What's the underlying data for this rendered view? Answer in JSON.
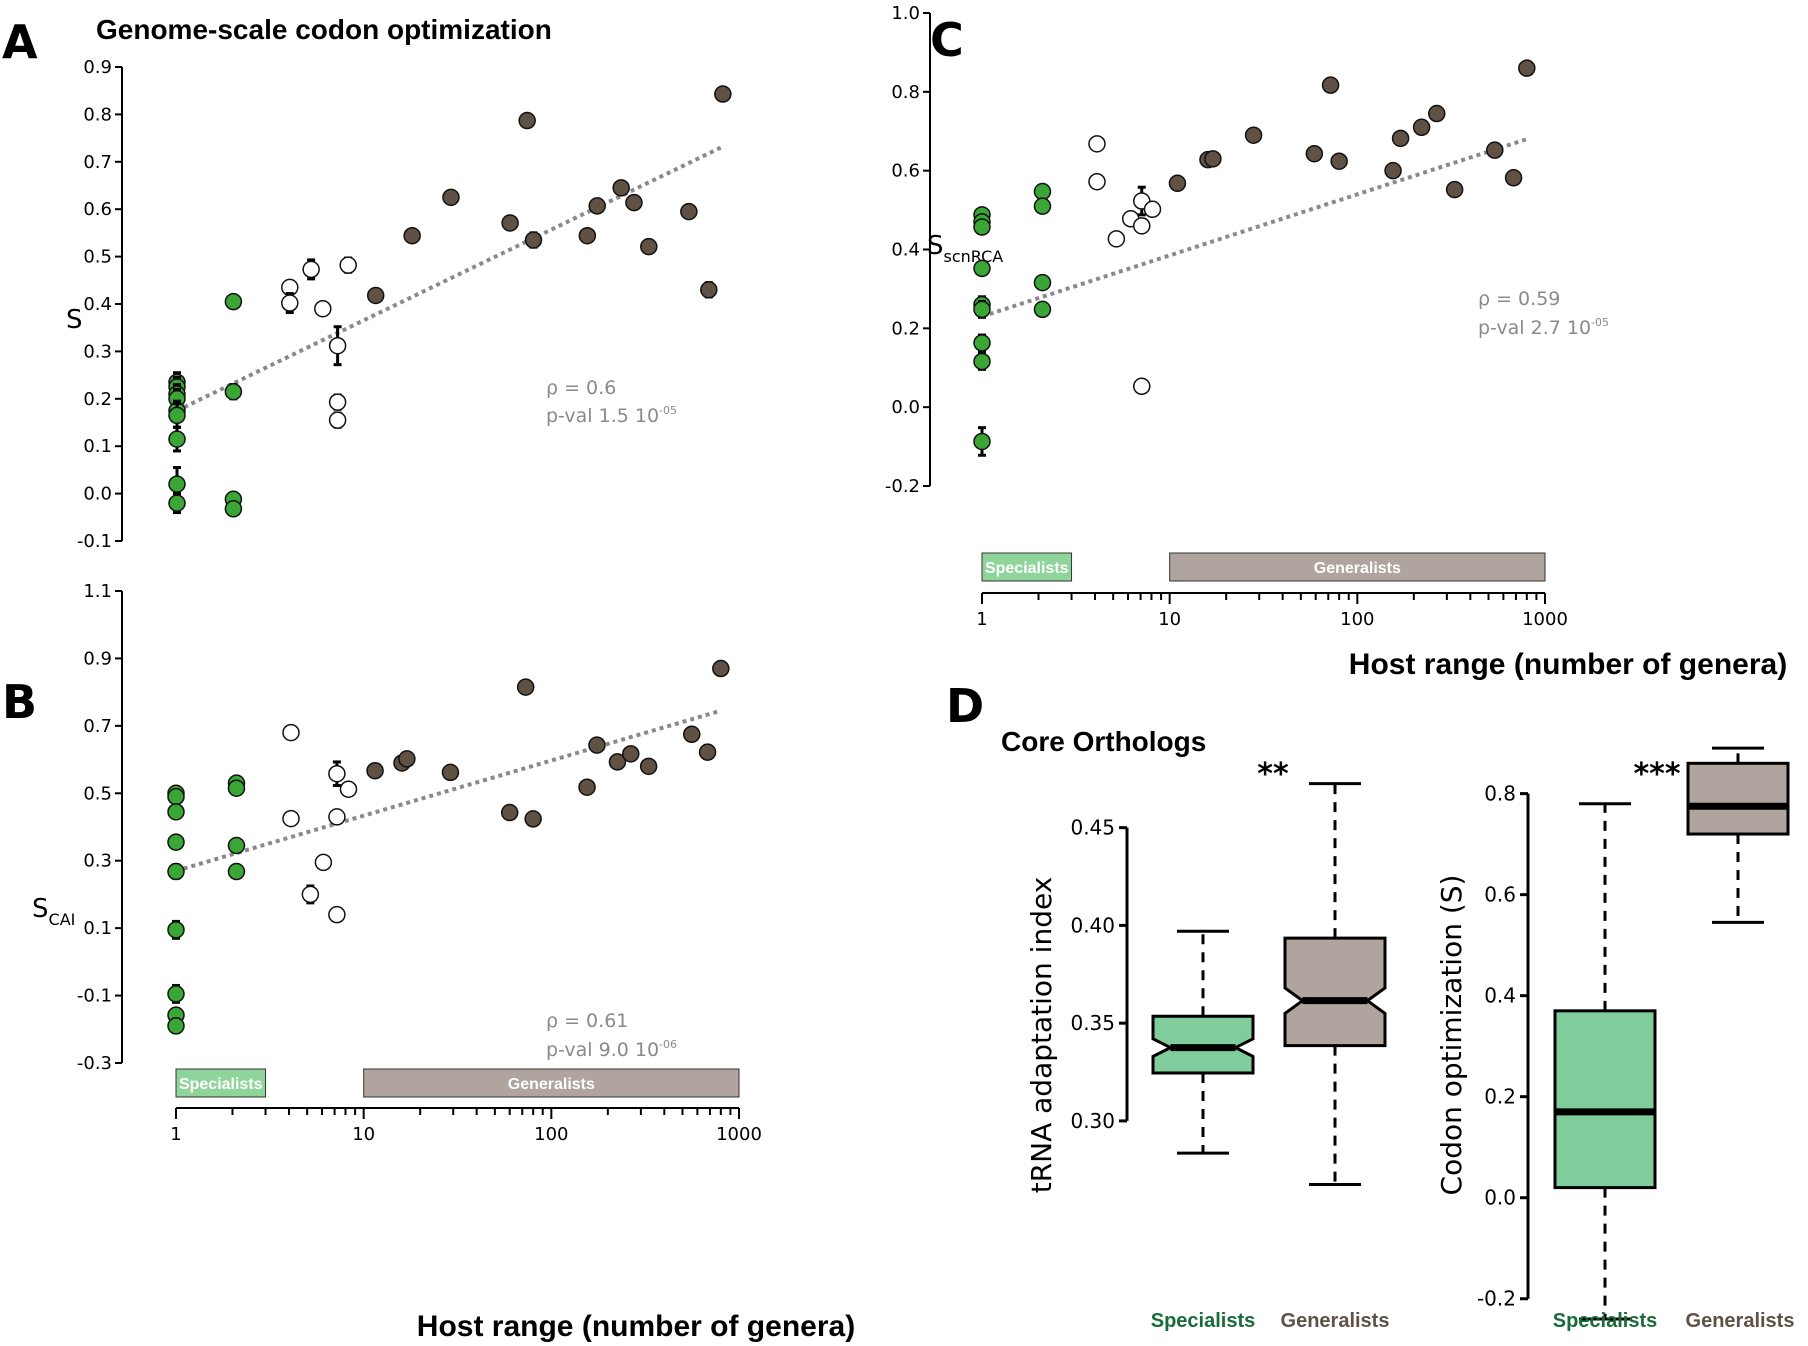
{
  "figure": {
    "colors": {
      "specialist": "#3aa635",
      "generalist": "#5f5144",
      "intermediate": "#ffffff",
      "trend": "#8a8a8a",
      "specialist_box": "#80cc9c",
      "generalist_box": "#b0a49e",
      "specialist_band": "#8fd49a",
      "generalist_band": "#b0a49e",
      "specialist_text": "#1a6b3a",
      "generalist_text": "#5f5144"
    },
    "legend_bands": {
      "specialists": "Specialists",
      "generalists": "Generalists"
    }
  },
  "chart_data": [
    {
      "id": "A",
      "type": "scatter",
      "panel_letter": "A",
      "title": "Genome-scale codon optimization",
      "ylabel": "S",
      "ylabel_sub": "",
      "xlabel": "",
      "xscale": "log",
      "xlim": [
        1,
        1000
      ],
      "ylim": [
        -0.1,
        0.9
      ],
      "yticks": [
        -0.1,
        0.0,
        0.1,
        0.2,
        0.3,
        0.4,
        0.5,
        0.6,
        0.7,
        0.8,
        0.9
      ],
      "ytick_labels": [
        "-0.1",
        "0.0",
        "0.1",
        "0.2",
        "0.3",
        "0.4",
        "0.5",
        "0.6",
        "0.7",
        "0.8",
        "0.9"
      ],
      "stats": {
        "rho": "ρ = 0.6",
        "pval": "p-val 1.5 10",
        "pval_exp": "-05"
      },
      "trend": {
        "x": [
          1,
          800
        ],
        "y": [
          0.175,
          0.73
        ]
      },
      "points": [
        {
          "x": 1,
          "y": 0.235,
          "g": "s",
          "e": 0.02
        },
        {
          "x": 1,
          "y": 0.225,
          "g": "s",
          "e": 0.02
        },
        {
          "x": 1,
          "y": 0.21,
          "g": "s",
          "e": 0.02
        },
        {
          "x": 1,
          "y": 0.2,
          "g": "s",
          "e": 0.02
        },
        {
          "x": 1,
          "y": 0.175,
          "g": "s",
          "e": 0.02
        },
        {
          "x": 1,
          "y": 0.165,
          "g": "s",
          "e": 0.025
        },
        {
          "x": 1,
          "y": 0.115,
          "g": "s",
          "e": 0.025
        },
        {
          "x": 1,
          "y": 0.02,
          "g": "s",
          "e": 0.035
        },
        {
          "x": 1,
          "y": -0.02,
          "g": "s",
          "e": 0.02
        },
        {
          "x": 2,
          "y": 0.405,
          "g": "s",
          "e": 0.01
        },
        {
          "x": 2,
          "y": 0.215,
          "g": "s",
          "e": 0.015
        },
        {
          "x": 2,
          "y": -0.012,
          "g": "s",
          "e": 0.01
        },
        {
          "x": 2,
          "y": -0.032,
          "g": "s",
          "e": 0.01
        },
        {
          "x": 4,
          "y": 0.435,
          "g": "i",
          "e": 0.01
        },
        {
          "x": 4,
          "y": 0.402,
          "g": "i",
          "e": 0.02
        },
        {
          "x": 5.2,
          "y": 0.473,
          "g": "i",
          "e": 0.02
        },
        {
          "x": 6,
          "y": 0.39,
          "g": "i",
          "e": 0.01
        },
        {
          "x": 7.2,
          "y": 0.312,
          "g": "i",
          "e": 0.04
        },
        {
          "x": 7.2,
          "y": 0.193,
          "g": "i",
          "e": 0.015
        },
        {
          "x": 7.2,
          "y": 0.155,
          "g": "i",
          "e": 0.015
        },
        {
          "x": 8.2,
          "y": 0.482,
          "g": "i",
          "e": 0.015
        },
        {
          "x": 11.5,
          "y": 0.418,
          "g": "g",
          "e": 0.01
        },
        {
          "x": 18,
          "y": 0.544,
          "g": "g",
          "e": 0.01
        },
        {
          "x": 29,
          "y": 0.625,
          "g": "g",
          "e": 0.005
        },
        {
          "x": 60,
          "y": 0.571,
          "g": "g",
          "e": 0.01
        },
        {
          "x": 74,
          "y": 0.787,
          "g": "g",
          "e": 0.005
        },
        {
          "x": 80,
          "y": 0.535,
          "g": "g",
          "e": 0.015
        },
        {
          "x": 155,
          "y": 0.544,
          "g": "g",
          "e": 0.01
        },
        {
          "x": 175,
          "y": 0.607,
          "g": "g",
          "e": 0.01
        },
        {
          "x": 235,
          "y": 0.645,
          "g": "g",
          "e": 0.005
        },
        {
          "x": 275,
          "y": 0.614,
          "g": "g",
          "e": 0.01
        },
        {
          "x": 330,
          "y": 0.521,
          "g": "g",
          "e": 0.01
        },
        {
          "x": 540,
          "y": 0.595,
          "g": "g",
          "e": 0.01
        },
        {
          "x": 690,
          "y": 0.43,
          "g": "g",
          "e": 0.015
        },
        {
          "x": 820,
          "y": 0.843,
          "g": "g",
          "e": 0.005
        }
      ]
    },
    {
      "id": "B",
      "type": "scatter",
      "panel_letter": "B",
      "title": "",
      "ylabel": "S",
      "ylabel_sub": "CAI",
      "xlabel": "Host range (number of genera)",
      "xscale": "log",
      "xlim": [
        1,
        1000
      ],
      "xticks": [
        1,
        10,
        100,
        1000
      ],
      "xtick_labels": [
        "1",
        "10",
        "100",
        "1000"
      ],
      "ylim": [
        -0.3,
        1.1
      ],
      "yticks": [
        -0.3,
        -0.1,
        0.1,
        0.3,
        0.5,
        0.7,
        0.9,
        1.1
      ],
      "ytick_labels": [
        "-0.3",
        "-0.1",
        "0.1",
        "0.3",
        "0.5",
        "0.7",
        "0.9",
        "1.1"
      ],
      "stats": {
        "rho": "ρ = 0.61",
        "pval": "p-val 9.0 10",
        "pval_exp": "-06"
      },
      "trend": {
        "x": [
          1,
          800
        ],
        "y": [
          0.27,
          0.745
        ]
      },
      "bands": [
        {
          "label": "Specialists",
          "x": [
            1,
            3
          ]
        },
        {
          "label": "Generalists",
          "x": [
            10,
            1000
          ]
        }
      ],
      "points": [
        {
          "x": 1,
          "y": 0.5,
          "g": "s",
          "e": 0.01
        },
        {
          "x": 1,
          "y": 0.49,
          "g": "s",
          "e": 0.01
        },
        {
          "x": 1,
          "y": 0.445,
          "g": "s",
          "e": 0.01
        },
        {
          "x": 1,
          "y": 0.355,
          "g": "s",
          "e": 0.015
        },
        {
          "x": 1,
          "y": 0.268,
          "g": "s",
          "e": 0.02
        },
        {
          "x": 1,
          "y": 0.095,
          "g": "s",
          "e": 0.025
        },
        {
          "x": 1,
          "y": -0.095,
          "g": "s",
          "e": 0.025
        },
        {
          "x": 1,
          "y": -0.158,
          "g": "s",
          "e": 0.01
        },
        {
          "x": 1,
          "y": -0.19,
          "g": "s",
          "e": 0.02
        },
        {
          "x": 2.1,
          "y": 0.53,
          "g": "s",
          "e": 0.01
        },
        {
          "x": 2.1,
          "y": 0.515,
          "g": "s",
          "e": 0.01
        },
        {
          "x": 2.1,
          "y": 0.345,
          "g": "s",
          "e": 0.01
        },
        {
          "x": 2.1,
          "y": 0.268,
          "g": "s",
          "e": 0.01
        },
        {
          "x": 4.1,
          "y": 0.68,
          "g": "i",
          "e": 0
        },
        {
          "x": 4.1,
          "y": 0.425,
          "g": "i",
          "e": 0
        },
        {
          "x": 5.2,
          "y": 0.2,
          "g": "i",
          "e": 0.025
        },
        {
          "x": 6.1,
          "y": 0.295,
          "g": "i",
          "e": 0
        },
        {
          "x": 7.2,
          "y": 0.558,
          "g": "i",
          "e": 0.035
        },
        {
          "x": 7.2,
          "y": 0.43,
          "g": "i",
          "e": 0
        },
        {
          "x": 7.2,
          "y": 0.14,
          "g": "i",
          "e": 0
        },
        {
          "x": 8.3,
          "y": 0.512,
          "g": "i",
          "e": 0
        },
        {
          "x": 11.5,
          "y": 0.567,
          "g": "g",
          "e": 0
        },
        {
          "x": 16,
          "y": 0.59,
          "g": "g",
          "e": 0
        },
        {
          "x": 17,
          "y": 0.602,
          "g": "g",
          "e": 0
        },
        {
          "x": 29,
          "y": 0.562,
          "g": "g",
          "e": 0
        },
        {
          "x": 60,
          "y": 0.443,
          "g": "g",
          "e": 0
        },
        {
          "x": 73,
          "y": 0.815,
          "g": "g",
          "e": 0
        },
        {
          "x": 80,
          "y": 0.424,
          "g": "g",
          "e": 0.01
        },
        {
          "x": 155,
          "y": 0.518,
          "g": "g",
          "e": 0
        },
        {
          "x": 175,
          "y": 0.643,
          "g": "g",
          "e": 0
        },
        {
          "io": 1,
          "x": 225,
          "y": 0.593,
          "g": "g",
          "e": 0
        },
        {
          "x": 265,
          "y": 0.617,
          "g": "g",
          "e": 0
        },
        {
          "x": 330,
          "y": 0.58,
          "g": "g",
          "e": 0
        },
        {
          "x": 560,
          "y": 0.675,
          "g": "g",
          "e": 0
        },
        {
          "x": 680,
          "y": 0.622,
          "g": "g",
          "e": 0
        },
        {
          "x": 800,
          "y": 0.87,
          "g": "g",
          "e": 0
        }
      ]
    },
    {
      "id": "C",
      "type": "scatter",
      "panel_letter": "C",
      "title": "",
      "ylabel": "S",
      "ylabel_sub": "scnRCA",
      "xlabel": "Host range (number of genera)",
      "xscale": "log",
      "xlim": [
        1,
        1000
      ],
      "xticks": [
        1,
        10,
        100,
        1000
      ],
      "xtick_labels": [
        "1",
        "10",
        "100",
        "1000"
      ],
      "ylim": [
        -0.2,
        1.0
      ],
      "yticks": [
        -0.2,
        0.0,
        0.2,
        0.4,
        0.6,
        0.8,
        1.0
      ],
      "ytick_labels": [
        "-0.2",
        "0.0",
        "0.2",
        "0.4",
        "0.6",
        "0.8",
        "1.0"
      ],
      "stats": {
        "rho": "ρ = 0.59",
        "pval": "p-val 2.7 10",
        "pval_exp": "-05"
      },
      "trend": {
        "x": [
          1,
          800
        ],
        "y": [
          0.23,
          0.68
        ]
      },
      "bands": [
        {
          "label": "Specialists",
          "x": [
            1,
            3
          ]
        },
        {
          "label": "Generalists",
          "x": [
            10,
            1000
          ]
        }
      ],
      "points": [
        {
          "x": 1,
          "y": 0.488,
          "g": "s",
          "e": 0.01
        },
        {
          "x": 1,
          "y": 0.47,
          "g": "s",
          "e": 0.01
        },
        {
          "x": 1,
          "y": 0.457,
          "g": "s",
          "e": 0.015
        },
        {
          "x": 1,
          "y": 0.352,
          "g": "s",
          "e": 0.01
        },
        {
          "x": 1,
          "y": 0.26,
          "g": "s",
          "e": 0.02
        },
        {
          "x": 1,
          "y": 0.248,
          "g": "s",
          "e": 0.02
        },
        {
          "x": 1,
          "y": 0.163,
          "g": "s",
          "e": 0.02
        },
        {
          "x": 1,
          "y": 0.116,
          "g": "s",
          "e": 0.02
        },
        {
          "x": 1,
          "y": -0.087,
          "g": "s",
          "e": 0.035
        },
        {
          "x": 2.1,
          "y": 0.547,
          "g": "s",
          "e": 0.01
        },
        {
          "x": 2.1,
          "y": 0.51,
          "g": "s",
          "e": 0.01
        },
        {
          "x": 2.1,
          "y": 0.316,
          "g": "s",
          "e": 0.015
        },
        {
          "x": 2.1,
          "y": 0.248,
          "g": "s",
          "e": 0.01
        },
        {
          "x": 4.1,
          "y": 0.668,
          "g": "i",
          "e": 0.01
        },
        {
          "x": 4.1,
          "y": 0.572,
          "g": "i",
          "e": 0
        },
        {
          "x": 5.2,
          "y": 0.427,
          "g": "i",
          "e": 0.015
        },
        {
          "x": 6.2,
          "y": 0.478,
          "g": "i",
          "e": 0
        },
        {
          "x": 7.1,
          "y": 0.523,
          "g": "i",
          "e": 0.035
        },
        {
          "x": 7.1,
          "y": 0.46,
          "g": "i",
          "e": 0.01
        },
        {
          "x": 7.1,
          "y": 0.053,
          "g": "i",
          "e": 0.01
        },
        {
          "x": 8.1,
          "y": 0.502,
          "g": "i",
          "e": 0.01
        },
        {
          "x": 11,
          "y": 0.568,
          "g": "g",
          "e": 0
        },
        {
          "x": 16,
          "y": 0.628,
          "g": "g",
          "e": 0
        },
        {
          "x": 17,
          "y": 0.63,
          "g": "g",
          "e": 0
        },
        {
          "x": 28,
          "y": 0.69,
          "g": "g",
          "e": 0
        },
        {
          "x": 59,
          "y": 0.643,
          "g": "g",
          "e": 0
        },
        {
          "x": 72,
          "y": 0.817,
          "g": "g",
          "e": 0
        },
        {
          "x": 80,
          "y": 0.624,
          "g": "g",
          "e": 0.005
        },
        {
          "x": 155,
          "y": 0.6,
          "g": "g",
          "e": 0.005
        },
        {
          "x": 170,
          "y": 0.682,
          "g": "g",
          "e": 0
        },
        {
          "x": 220,
          "y": 0.71,
          "g": "g",
          "e": 0
        },
        {
          "x": 265,
          "y": 0.745,
          "g": "g",
          "e": 0
        },
        {
          "x": 330,
          "y": 0.552,
          "g": "g",
          "e": 0.005
        },
        {
          "x": 540,
          "y": 0.652,
          "g": "g",
          "e": 0
        },
        {
          "x": 680,
          "y": 0.582,
          "g": "g",
          "e": 0.005
        },
        {
          "x": 800,
          "y": 0.86,
          "g": "g",
          "e": 0
        }
      ]
    },
    {
      "id": "D1",
      "type": "box",
      "panel_letter": "D",
      "title": "Core Orthologs",
      "ylabel": "tRNA adaptation index",
      "ylim": [
        0.28,
        0.48
      ],
      "yticks": [
        0.3,
        0.35,
        0.4,
        0.45
      ],
      "ytick_labels": [
        "0.30",
        "0.35",
        "0.40",
        "0.45"
      ],
      "notched": true,
      "significance": "**",
      "categories": [
        "Specialists",
        "Generalists"
      ],
      "boxes": [
        {
          "name": "Specialists",
          "whisker_low": 0.2835,
          "q1": 0.3245,
          "median": 0.3375,
          "q3": 0.3535,
          "whisker_high": 0.397,
          "notch": [
            0.333,
            0.342
          ]
        },
        {
          "name": "Generalists",
          "whisker_low": 0.2675,
          "q1": 0.3385,
          "median": 0.3615,
          "q3": 0.3935,
          "whisker_high": 0.4725,
          "notch": [
            0.355,
            0.368
          ]
        }
      ]
    },
    {
      "id": "D2",
      "type": "box",
      "panel_letter": "",
      "title": "",
      "ylabel": "Codon optimization (S)",
      "ylim": [
        -0.25,
        0.92
      ],
      "yticks": [
        -0.2,
        0.0,
        0.2,
        0.4,
        0.6,
        0.8
      ],
      "ytick_labels": [
        "-0.2",
        "0.0",
        "0.2",
        "0.4",
        "0.6",
        "0.8"
      ],
      "notched": false,
      "significance": "***",
      "categories": [
        "Specialists",
        "Generalists"
      ],
      "boxes": [
        {
          "name": "Specialists",
          "whisker_low": -0.24,
          "q1": 0.02,
          "median": 0.17,
          "q3": 0.37,
          "whisker_high": 0.78
        },
        {
          "name": "Generalists",
          "whisker_low": 0.545,
          "q1": 0.72,
          "median": 0.775,
          "q3": 0.86,
          "whisker_high": 0.89
        }
      ]
    }
  ]
}
